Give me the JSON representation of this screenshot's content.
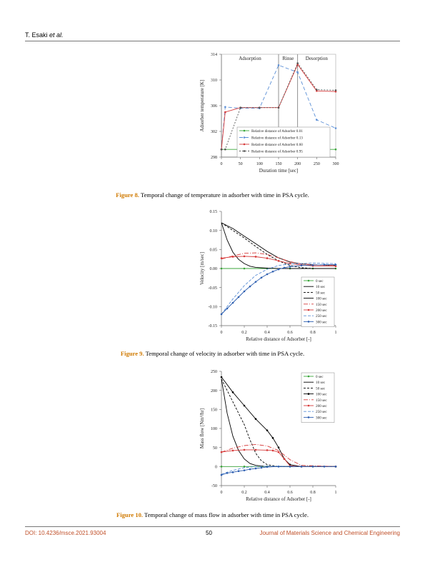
{
  "header": {
    "author": "T. Esaki",
    "etal": "et al."
  },
  "footer": {
    "doi": "DOI: 10.4236/msce.2021.93004",
    "page": "50",
    "journal": "Journal of Materials Science and Chemical Engineering"
  },
  "figures": [
    {
      "label": "Figure 8.",
      "text": " Temporal change of temperature in adsorber with time in PSA cycle."
    },
    {
      "label": "Figure 9.",
      "text": " Temporal change of velocity in adsorber with time in PSA cycle."
    },
    {
      "label": "Figure 10.",
      "text": " Temporal change of mass flow in adsorber with time in PSA cycle."
    }
  ],
  "chart_data": [
    {
      "type": "line",
      "title": "",
      "xlabel": "Duration time [sec]",
      "ylabel": "Adsorber temperature [K]",
      "xlim": [
        0,
        300
      ],
      "ylim": [
        298,
        314
      ],
      "xticks": [
        "0",
        "50",
        "100",
        "150",
        "200",
        "250",
        "300"
      ],
      "yticks": [
        "298",
        "302",
        "306",
        "310",
        "314"
      ],
      "phases": [
        {
          "label": "Adsorption",
          "x": 75
        },
        {
          "label": "Rinse",
          "x": 175
        },
        {
          "label": "Desorption",
          "x": 250
        }
      ],
      "phase_lines": [
        150,
        200
      ],
      "series": [
        {
          "name": "Relative distance of Adsorber 0.01",
          "color": "#3aa63a",
          "dash": "",
          "marker": "circle",
          "x": [
            0,
            50,
            100,
            150,
            200,
            250,
            300
          ],
          "y": [
            299.2,
            299.2,
            299.2,
            299.2,
            299.2,
            299.2,
            299.2
          ]
        },
        {
          "name": "Relative distance of Adsorber 0.13",
          "color": "#5b8fd6",
          "dash": "5,3",
          "marker": "circle",
          "x": [
            0,
            10,
            50,
            100,
            150,
            200,
            250,
            300
          ],
          "y": [
            299.2,
            305.8,
            305.6,
            305.6,
            312.3,
            311.2,
            303.8,
            302.5
          ]
        },
        {
          "name": "Relative distance of Adsorber 0.60",
          "color": "#d63a3a",
          "dash": "",
          "marker": "circle",
          "x": [
            0,
            10,
            50,
            100,
            150,
            200,
            250,
            300
          ],
          "y": [
            299.2,
            305.0,
            305.7,
            305.7,
            305.7,
            312.4,
            308.3,
            308.2
          ]
        },
        {
          "name": "Relative distance of Adsorber 0.95",
          "color": "#555555",
          "dash": "2,2",
          "marker": "circle",
          "x": [
            0,
            10,
            50,
            100,
            150,
            200,
            250,
            300
          ],
          "y": [
            299.2,
            299.2,
            305.7,
            305.7,
            305.7,
            312.6,
            308.5,
            308.4
          ]
        }
      ],
      "legend": "bottom-right"
    },
    {
      "type": "line",
      "title": "",
      "xlabel": "Relative distance of Adsorber [-]",
      "ylabel": "Velocity [m/sec]",
      "xlim": [
        0,
        1
      ],
      "ylim": [
        -0.15,
        0.15
      ],
      "xticks": [
        "0",
        "0.2",
        "0.4",
        "0.6",
        "0.8",
        "1"
      ],
      "yticks": [
        "0.15",
        "0.10",
        "0.05",
        "0.00",
        "-0.05",
        "-0.10",
        "-0.15"
      ],
      "series": [
        {
          "name": "0 sec",
          "color": "#3aa63a",
          "dash": "",
          "marker": "circle",
          "x": [
            0,
            0.2,
            0.4,
            0.6,
            0.8,
            1
          ],
          "y": [
            0,
            0,
            0,
            0,
            0,
            0
          ]
        },
        {
          "name": "10 sec",
          "color": "#000000",
          "dash": "",
          "marker": "",
          "x": [
            0,
            0.05,
            0.1,
            0.15,
            0.2,
            0.25,
            0.3,
            0.4,
            0.5,
            1
          ],
          "y": [
            0.12,
            0.075,
            0.043,
            0.024,
            0.013,
            0.006,
            0.003,
            0.001,
            0,
            0
          ]
        },
        {
          "name": "50 sec",
          "color": "#000000",
          "dash": "3,2",
          "marker": "",
          "x": [
            0,
            0.1,
            0.2,
            0.3,
            0.4,
            0.5,
            0.6,
            0.7,
            0.8,
            1
          ],
          "y": [
            0.12,
            0.1,
            0.08,
            0.058,
            0.037,
            0.02,
            0.008,
            0.002,
            0,
            0
          ]
        },
        {
          "name": "100 sec",
          "color": "#000000",
          "dash": "",
          "marker": "",
          "x": [
            0,
            0.1,
            0.2,
            0.3,
            0.4,
            0.5,
            0.6,
            0.7,
            0.8,
            0.9,
            1
          ],
          "y": [
            0.12,
            0.105,
            0.085,
            0.065,
            0.045,
            0.028,
            0.017,
            0.012,
            0.01,
            0.009,
            0.008
          ]
        },
        {
          "name": "150 sec",
          "color": "#d63a3a",
          "dash": "6,2,1,2",
          "marker": "",
          "x": [
            0,
            0.1,
            0.2,
            0.3,
            0.4,
            0.5,
            0.6,
            0.7,
            0.8,
            1
          ],
          "y": [
            0.025,
            0.033,
            0.04,
            0.041,
            0.037,
            0.028,
            0.018,
            0.012,
            0.01,
            0.008
          ]
        },
        {
          "name": "200 sec",
          "color": "#d63a3a",
          "dash": "",
          "marker": "circle",
          "x": [
            0,
            0.1,
            0.2,
            0.3,
            0.4,
            0.5,
            0.6,
            0.7,
            0.8,
            1
          ],
          "y": [
            0.027,
            0.031,
            0.032,
            0.031,
            0.027,
            0.02,
            0.013,
            0.009,
            0.007,
            0.006
          ]
        },
        {
          "name": "250 sec",
          "color": "#5b8fd6",
          "dash": "4,2",
          "marker": "",
          "x": [
            0,
            0.1,
            0.2,
            0.3,
            0.4,
            0.5,
            0.6,
            0.8,
            1
          ],
          "y": [
            -0.12,
            -0.08,
            -0.045,
            -0.018,
            -0.002,
            0.008,
            0.012,
            0.014,
            0.013
          ]
        },
        {
          "name": "300 sec",
          "color": "#2e5fb0",
          "dash": "",
          "marker": "circle",
          "x": [
            0,
            0.05,
            0.1,
            0.15,
            0.2,
            0.25,
            0.3,
            0.35,
            0.4,
            0.45,
            0.5,
            0.55,
            0.6,
            0.7,
            0.8,
            0.9,
            1
          ],
          "y": [
            -0.12,
            -0.105,
            -0.09,
            -0.075,
            -0.06,
            -0.047,
            -0.035,
            -0.024,
            -0.015,
            -0.008,
            -0.002,
            0.002,
            0.005,
            0.008,
            0.009,
            0.01,
            0.01
          ]
        }
      ],
      "legend": "bottom-right"
    },
    {
      "type": "line",
      "title": "",
      "xlabel": "Relative distance of Adsorber [-]",
      "ylabel": "Mass flow [Nm³/hr]",
      "xlim": [
        0,
        1
      ],
      "ylim": [
        -50,
        250
      ],
      "xticks": [
        "0",
        "0.2",
        "0.4",
        "0.6",
        "0.8",
        "1"
      ],
      "yticks": [
        "250",
        "200",
        "150",
        "100",
        "50",
        "0",
        "-50"
      ],
      "series": [
        {
          "name": "0 sec",
          "color": "#3aa63a",
          "dash": "",
          "marker": "circle",
          "x": [
            0,
            0.2,
            0.4,
            0.6,
            0.8,
            1
          ],
          "y": [
            0,
            0,
            0,
            0,
            0,
            0
          ]
        },
        {
          "name": "10 sec",
          "color": "#000000",
          "dash": "",
          "marker": "",
          "x": [
            0,
            0.05,
            0.1,
            0.15,
            0.2,
            0.25,
            0.3,
            0.4,
            0.5,
            1
          ],
          "y": [
            230,
            140,
            80,
            42,
            20,
            8,
            3,
            0,
            0,
            0
          ]
        },
        {
          "name": "50 sec",
          "color": "#000000",
          "dash": "3,2",
          "marker": "",
          "x": [
            0,
            0.1,
            0.2,
            0.25,
            0.3,
            0.35,
            0.4,
            0.5,
            1
          ],
          "y": [
            230,
            170,
            110,
            70,
            35,
            15,
            5,
            0,
            0
          ]
        },
        {
          "name": "100 sec",
          "color": "#000000",
          "dash": "",
          "marker": "circle",
          "x": [
            0,
            0.1,
            0.2,
            0.3,
            0.4,
            0.45,
            0.5,
            0.55,
            0.6,
            0.7,
            1
          ],
          "y": [
            235,
            195,
            160,
            125,
            95,
            75,
            50,
            20,
            5,
            0,
            0
          ]
        },
        {
          "name": "150 sec",
          "color": "#d63a3a",
          "dash": "6,2,1,2",
          "marker": "",
          "x": [
            0,
            0.1,
            0.2,
            0.3,
            0.4,
            0.5,
            0.6,
            0.7,
            1
          ],
          "y": [
            38,
            48,
            55,
            58,
            54,
            42,
            18,
            3,
            0
          ]
        },
        {
          "name": "200 sec",
          "color": "#d63a3a",
          "dash": "",
          "marker": "circle",
          "x": [
            0,
            0.1,
            0.2,
            0.3,
            0.4,
            0.45,
            0.5,
            0.55,
            0.6,
            0.7,
            1
          ],
          "y": [
            38,
            42,
            44,
            44,
            43,
            42,
            38,
            20,
            2,
            0,
            0
          ]
        },
        {
          "name": "250 sec",
          "color": "#5b8fd6",
          "dash": "4,2",
          "marker": "",
          "x": [
            0,
            0.1,
            0.2,
            0.3,
            0.4,
            0.5,
            0.6,
            1
          ],
          "y": [
            -20,
            -10,
            -3,
            0,
            1,
            1,
            0,
            0
          ]
        },
        {
          "name": "300 sec",
          "color": "#2e5fb0",
          "dash": "",
          "marker": "circle",
          "x": [
            0,
            0.05,
            0.1,
            0.15,
            0.2,
            0.25,
            0.3,
            0.35,
            0.4,
            0.5,
            0.6,
            0.7,
            0.8,
            0.9,
            1
          ],
          "y": [
            -22,
            -17,
            -15,
            -12,
            -10,
            -7,
            -5,
            -3,
            -1,
            0,
            0,
            0,
            0,
            0,
            0
          ]
        }
      ],
      "legend": "top-right"
    }
  ]
}
